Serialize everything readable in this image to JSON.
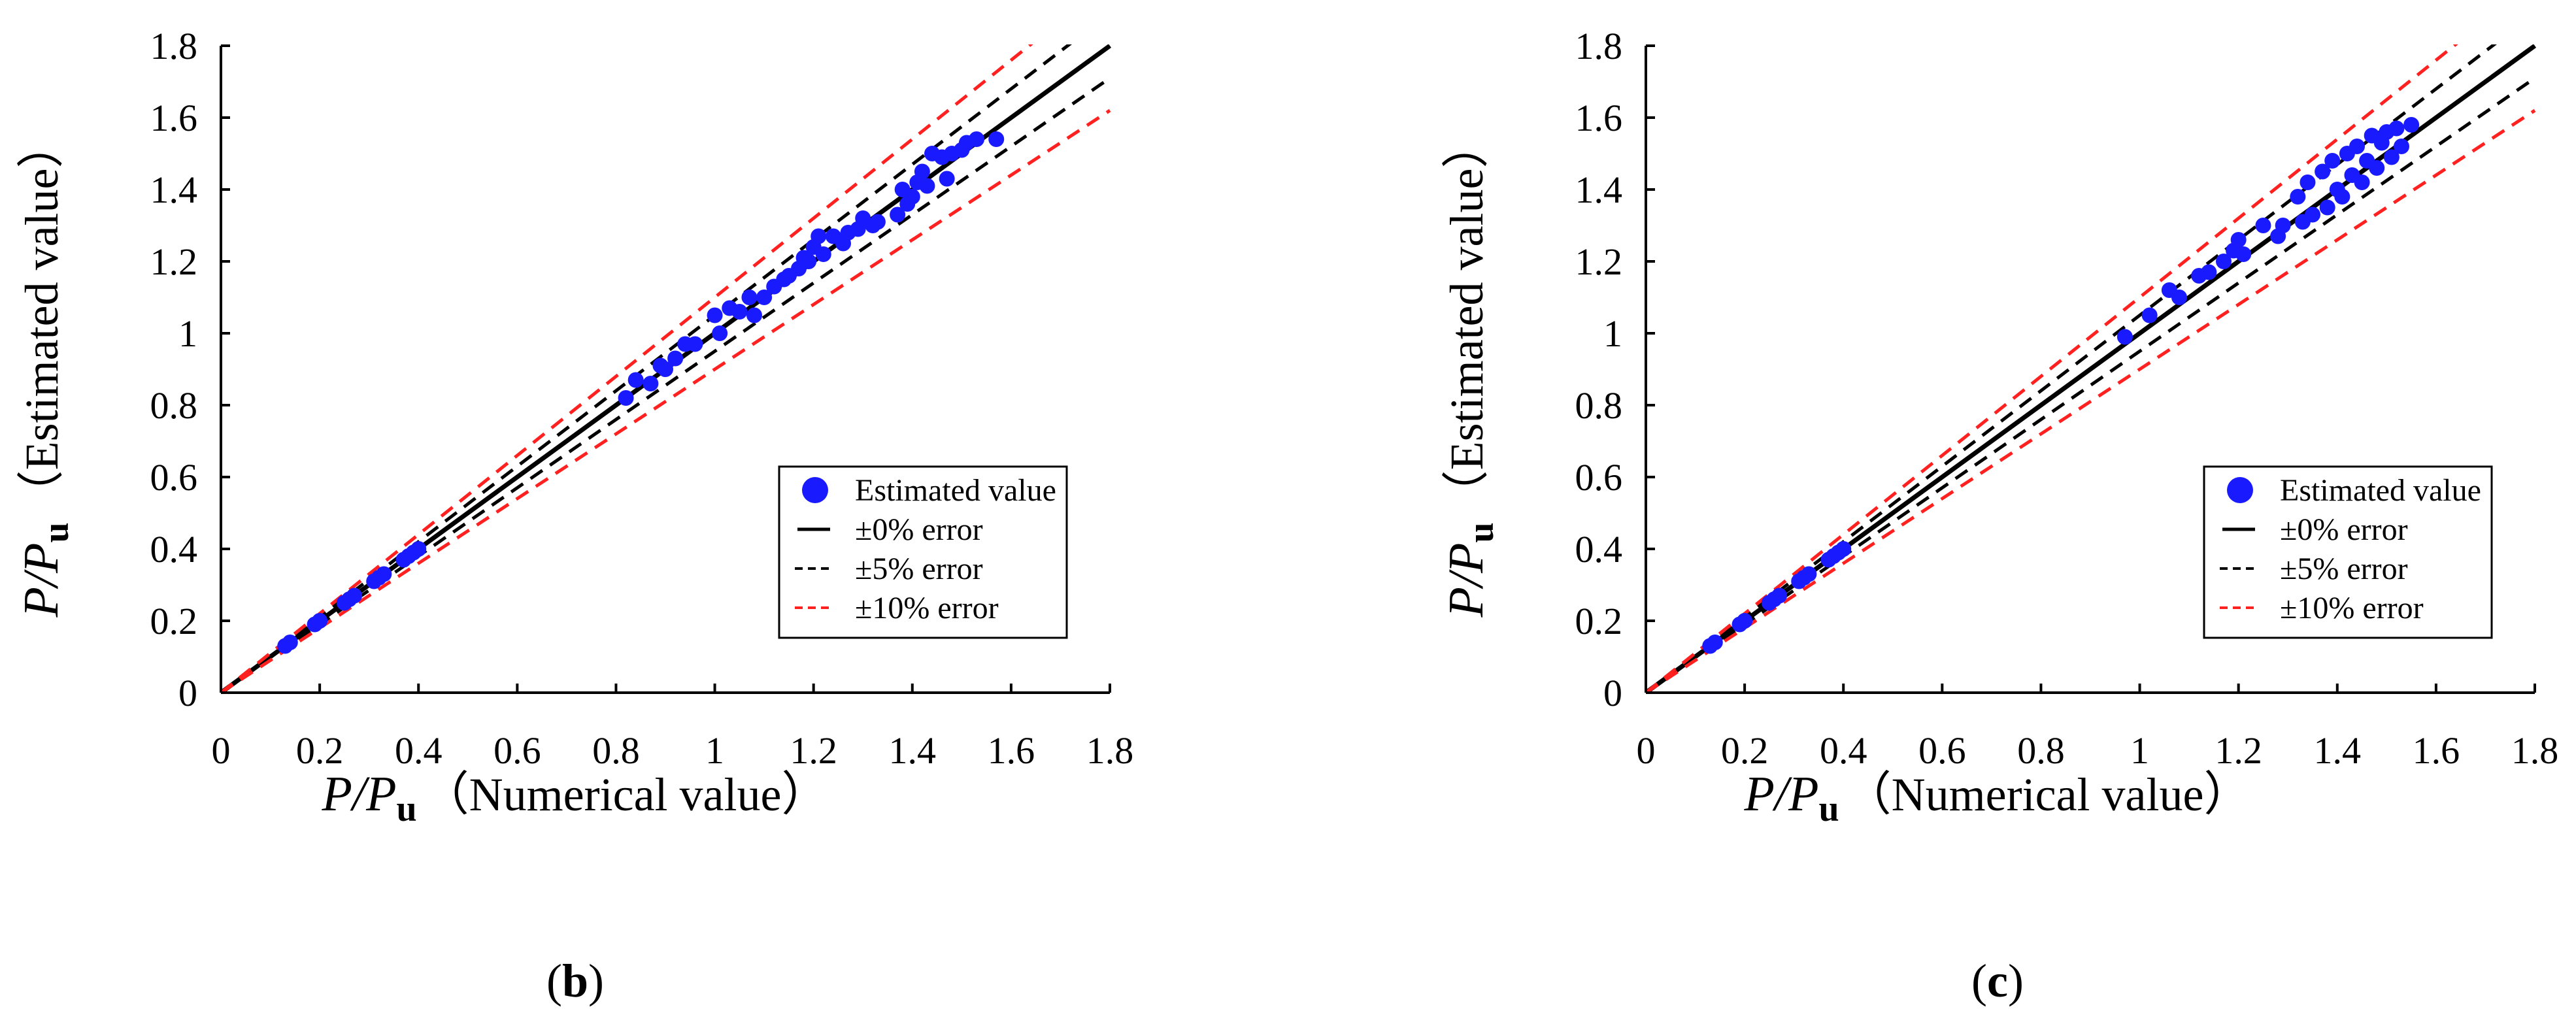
{
  "figure": {
    "panels": [
      {
        "label_open": "(",
        "label_letter": "b",
        "label_close": ")"
      },
      {
        "label_open": "(",
        "label_letter": "c",
        "label_close": ")"
      }
    ]
  },
  "colors": {
    "points": "#1a1aff",
    "zero_line": "#000000",
    "five_line": "#000000",
    "ten_line": "#ff2020"
  },
  "chart_data": [
    {
      "type": "scatter",
      "panel": "b",
      "xlabel_italic": "P/P",
      "xlabel_sub": "u",
      "xlabel_suffix": "（Numerical value）",
      "ylabel_italic": "P/P",
      "ylabel_sub": "u",
      "ylabel_suffix": "（Estimated value）",
      "xlim": [
        0,
        1.8
      ],
      "ylim": [
        0,
        1.8
      ],
      "xticks": [
        "0",
        "0.2",
        "0.4",
        "0.6",
        "0.8",
        "1",
        "1.2",
        "1.4",
        "1.6",
        "1.8"
      ],
      "yticks": [
        "0",
        "0.2",
        "0.4",
        "0.6",
        "0.8",
        "1",
        "1.2",
        "1.4",
        "1.6",
        "1.8"
      ],
      "legend_position": "bottom-right",
      "legend": [
        "Estimated value",
        "±0% error",
        "±5% error",
        "±10% error"
      ],
      "reference_lines": [
        {
          "name": "±0% error",
          "slopes": [
            1.0
          ],
          "style": "solid"
        },
        {
          "name": "±5% error",
          "slopes": [
            1.05,
            0.95
          ],
          "style": "dashed"
        },
        {
          "name": "±10% error",
          "slopes": [
            1.1,
            0.9
          ],
          "style": "dashed-red"
        }
      ],
      "series": [
        {
          "name": "Estimated value",
          "points": [
            [
              0.13,
              0.13
            ],
            [
              0.14,
              0.14
            ],
            [
              0.19,
              0.19
            ],
            [
              0.2,
              0.2
            ],
            [
              0.25,
              0.25
            ],
            [
              0.26,
              0.26
            ],
            [
              0.27,
              0.27
            ],
            [
              0.31,
              0.31
            ],
            [
              0.32,
              0.32
            ],
            [
              0.33,
              0.33
            ],
            [
              0.37,
              0.37
            ],
            [
              0.38,
              0.38
            ],
            [
              0.39,
              0.39
            ],
            [
              0.4,
              0.4
            ],
            [
              0.82,
              0.82
            ],
            [
              0.84,
              0.87
            ],
            [
              0.87,
              0.86
            ],
            [
              0.89,
              0.91
            ],
            [
              0.9,
              0.9
            ],
            [
              0.92,
              0.93
            ],
            [
              0.94,
              0.97
            ],
            [
              0.96,
              0.97
            ],
            [
              1.0,
              1.05
            ],
            [
              1.01,
              1.0
            ],
            [
              1.03,
              1.07
            ],
            [
              1.05,
              1.06
            ],
            [
              1.07,
              1.1
            ],
            [
              1.08,
              1.05
            ],
            [
              1.1,
              1.1
            ],
            [
              1.12,
              1.13
            ],
            [
              1.14,
              1.15
            ],
            [
              1.15,
              1.16
            ],
            [
              1.17,
              1.18
            ],
            [
              1.18,
              1.21
            ],
            [
              1.19,
              1.2
            ],
            [
              1.2,
              1.24
            ],
            [
              1.21,
              1.27
            ],
            [
              1.22,
              1.22
            ],
            [
              1.24,
              1.27
            ],
            [
              1.26,
              1.25
            ],
            [
              1.27,
              1.28
            ],
            [
              1.29,
              1.29
            ],
            [
              1.3,
              1.32
            ],
            [
              1.32,
              1.3
            ],
            [
              1.33,
              1.31
            ],
            [
              1.37,
              1.33
            ],
            [
              1.38,
              1.4
            ],
            [
              1.39,
              1.36
            ],
            [
              1.4,
              1.38
            ],
            [
              1.41,
              1.42
            ],
            [
              1.42,
              1.45
            ],
            [
              1.43,
              1.41
            ],
            [
              1.44,
              1.5
            ],
            [
              1.46,
              1.49
            ],
            [
              1.47,
              1.43
            ],
            [
              1.48,
              1.5
            ],
            [
              1.5,
              1.51
            ],
            [
              1.51,
              1.53
            ],
            [
              1.53,
              1.54
            ],
            [
              1.57,
              1.54
            ]
          ]
        }
      ]
    },
    {
      "type": "scatter",
      "panel": "c",
      "xlabel_italic": "P/P",
      "xlabel_sub": "u",
      "xlabel_suffix": "（Numerical value）",
      "ylabel_italic": "P/P",
      "ylabel_sub": "u",
      "ylabel_suffix": "（Estimated value）",
      "xlim": [
        0,
        1.8
      ],
      "ylim": [
        0,
        1.8
      ],
      "xticks": [
        "0",
        "0.2",
        "0.4",
        "0.6",
        "0.8",
        "1",
        "1.2",
        "1.4",
        "1.6",
        "1.8"
      ],
      "yticks": [
        "0",
        "0.2",
        "0.4",
        "0.6",
        "0.8",
        "1",
        "1.2",
        "1.4",
        "1.6",
        "1.8"
      ],
      "legend_position": "bottom-right",
      "legend": [
        "Estimated value",
        "±0% error",
        "±5% error",
        "±10% error"
      ],
      "reference_lines": [
        {
          "name": "±0% error",
          "slopes": [
            1.0
          ],
          "style": "solid"
        },
        {
          "name": "±5% error",
          "slopes": [
            1.05,
            0.95
          ],
          "style": "dashed"
        },
        {
          "name": "±10% error",
          "slopes": [
            1.1,
            0.9
          ],
          "style": "dashed-red"
        }
      ],
      "series": [
        {
          "name": "Estimated value",
          "points": [
            [
              0.13,
              0.13
            ],
            [
              0.14,
              0.14
            ],
            [
              0.19,
              0.19
            ],
            [
              0.2,
              0.2
            ],
            [
              0.25,
              0.25
            ],
            [
              0.26,
              0.26
            ],
            [
              0.27,
              0.27
            ],
            [
              0.31,
              0.31
            ],
            [
              0.32,
              0.32
            ],
            [
              0.33,
              0.33
            ],
            [
              0.37,
              0.37
            ],
            [
              0.38,
              0.38
            ],
            [
              0.39,
              0.39
            ],
            [
              0.4,
              0.4
            ],
            [
              0.97,
              0.99
            ],
            [
              1.02,
              1.05
            ],
            [
              1.06,
              1.12
            ],
            [
              1.08,
              1.1
            ],
            [
              1.12,
              1.16
            ],
            [
              1.14,
              1.17
            ],
            [
              1.17,
              1.2
            ],
            [
              1.19,
              1.23
            ],
            [
              1.2,
              1.26
            ],
            [
              1.21,
              1.22
            ],
            [
              1.25,
              1.3
            ],
            [
              1.28,
              1.27
            ],
            [
              1.29,
              1.3
            ],
            [
              1.32,
              1.38
            ],
            [
              1.33,
              1.31
            ],
            [
              1.34,
              1.42
            ],
            [
              1.35,
              1.33
            ],
            [
              1.37,
              1.45
            ],
            [
              1.38,
              1.35
            ],
            [
              1.39,
              1.48
            ],
            [
              1.4,
              1.4
            ],
            [
              1.41,
              1.38
            ],
            [
              1.42,
              1.5
            ],
            [
              1.43,
              1.44
            ],
            [
              1.44,
              1.52
            ],
            [
              1.45,
              1.42
            ],
            [
              1.46,
              1.48
            ],
            [
              1.47,
              1.55
            ],
            [
              1.48,
              1.46
            ],
            [
              1.49,
              1.53
            ],
            [
              1.5,
              1.56
            ],
            [
              1.51,
              1.49
            ],
            [
              1.52,
              1.57
            ],
            [
              1.53,
              1.52
            ],
            [
              1.55,
              1.58
            ]
          ]
        }
      ]
    }
  ]
}
